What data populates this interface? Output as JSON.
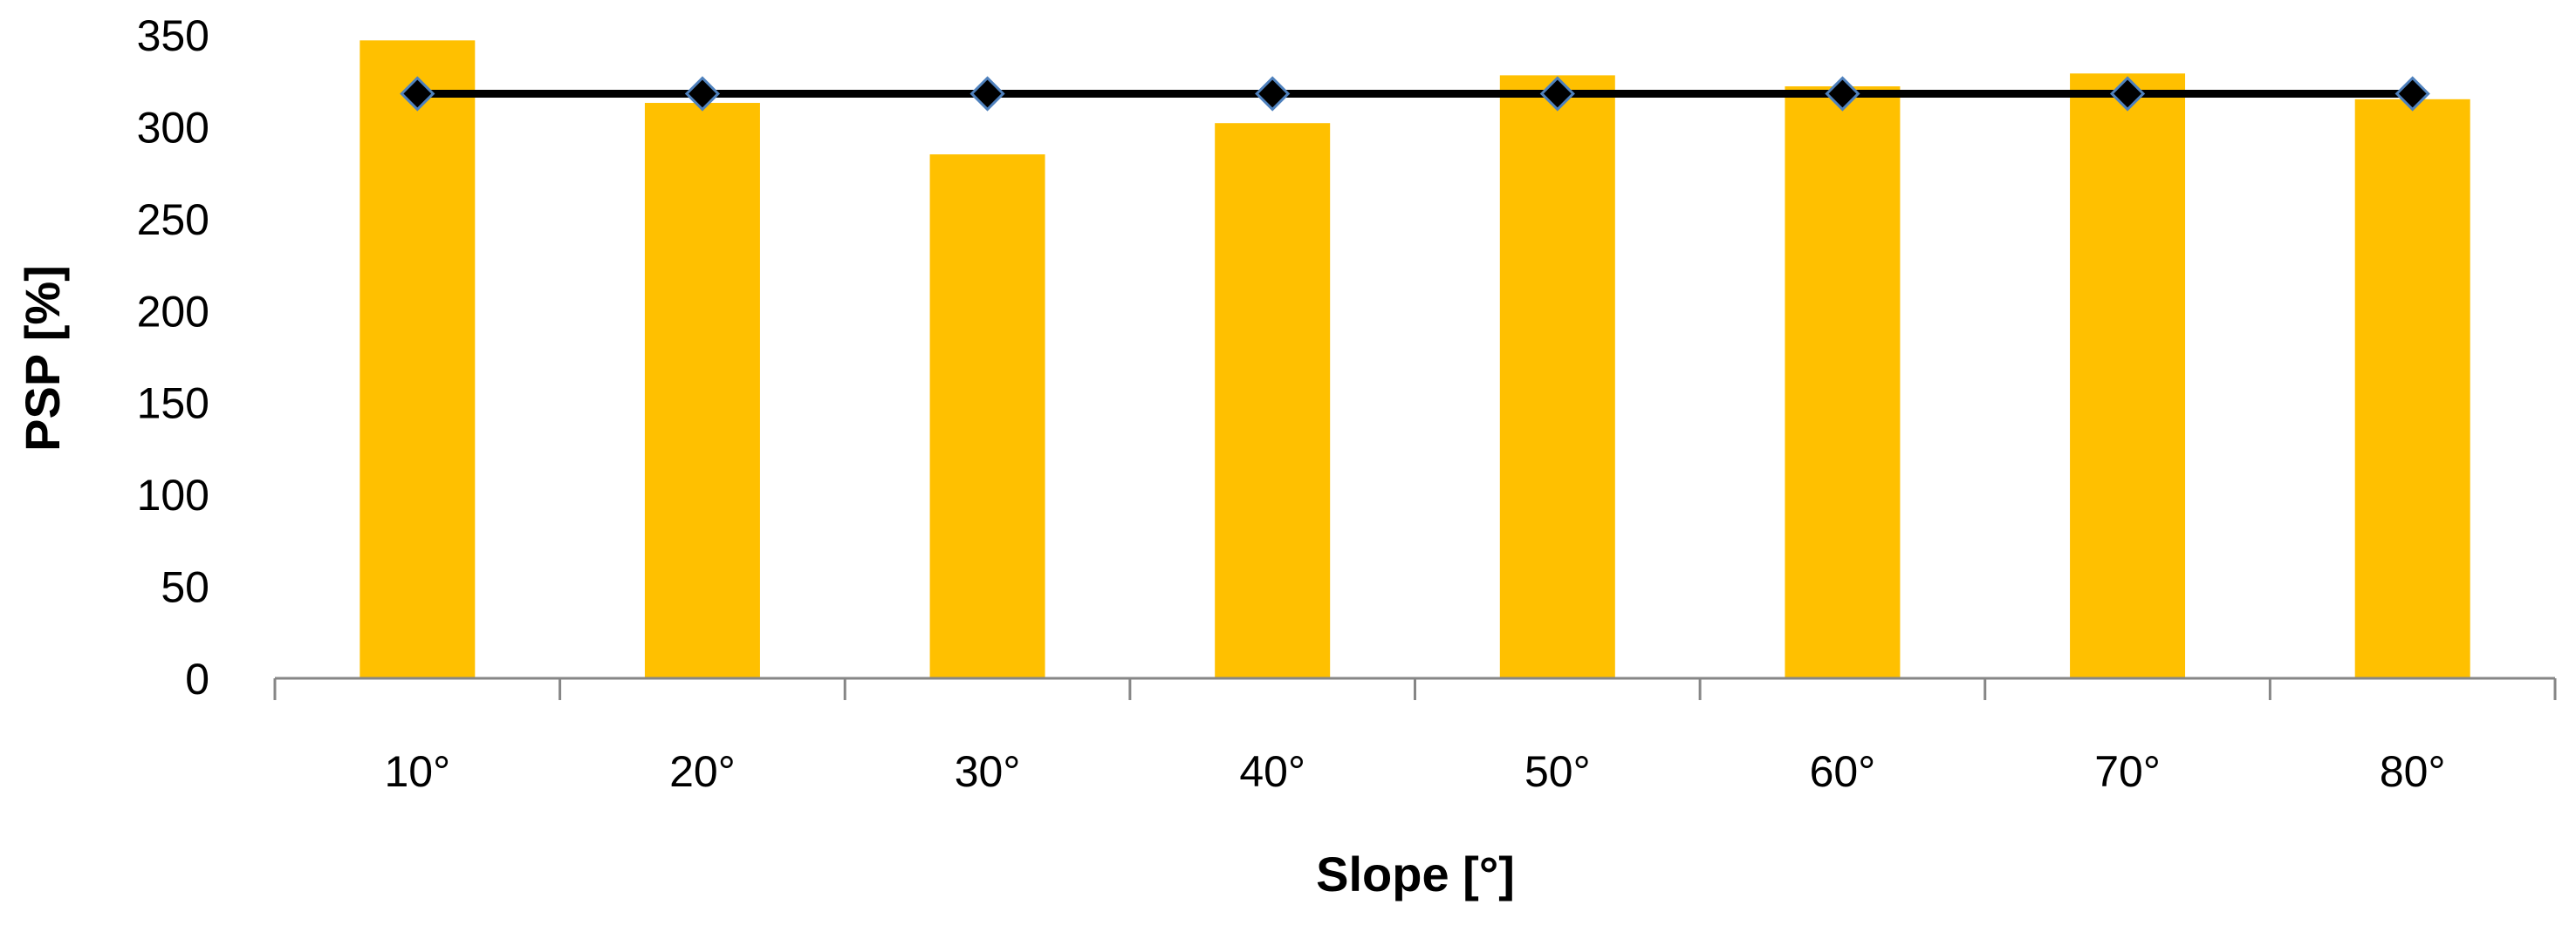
{
  "chart_data": {
    "type": "bar",
    "categories": [
      "10°",
      "20°",
      "30°",
      "40°",
      "50°",
      "60°",
      "70°",
      "80°"
    ],
    "series": [
      {
        "kind": "bar",
        "values": [
          347,
          313,
          285,
          302,
          328,
          322,
          329,
          315
        ],
        "color": "#FFC000"
      },
      {
        "kind": "line",
        "values": [
          318,
          318,
          318,
          318,
          318,
          318,
          318,
          318
        ],
        "color": "#000000",
        "marker": "diamond",
        "marker_edge_color": "#4F81BD"
      }
    ],
    "xlabel": "Slope [°]",
    "ylabel": "PSP [%]",
    "ylim": [
      0,
      350
    ],
    "yticks": [
      0,
      50,
      100,
      150,
      200,
      250,
      300,
      350
    ],
    "grid": false,
    "legend": "none"
  }
}
